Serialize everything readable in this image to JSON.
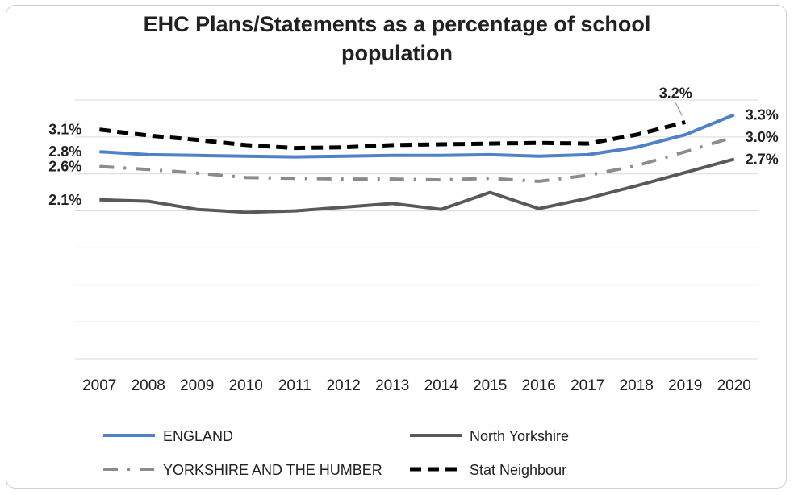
{
  "chart_data": {
    "type": "line",
    "title": "EHC Plans/Statements as a percentage of school population",
    "xlabel": "",
    "ylabel": "",
    "x": [
      "2007",
      "2008",
      "2009",
      "2010",
      "2011",
      "2012",
      "2013",
      "2014",
      "2015",
      "2016",
      "2017",
      "2018",
      "2019",
      "2020"
    ],
    "ylim": [
      0,
      3.5
    ],
    "grid": true,
    "legend_position": "bottom",
    "series": [
      {
        "name": "ENGLAND",
        "color": "#4f81c8",
        "style": "solid",
        "values": [
          2.8,
          2.76,
          2.75,
          2.74,
          2.73,
          2.74,
          2.75,
          2.75,
          2.76,
          2.74,
          2.76,
          2.86,
          3.03,
          3.3
        ]
      },
      {
        "name": "North Yorkshire",
        "color": "#595959",
        "style": "solid",
        "values": [
          2.15,
          2.13,
          2.02,
          1.98,
          2.0,
          2.05,
          2.1,
          2.02,
          2.25,
          2.03,
          2.17,
          2.34,
          2.52,
          2.7
        ]
      },
      {
        "name": "YORKSHIRE AND THE HUMBER",
        "color": "#8c8c8c",
        "style": "dashdot",
        "values": [
          2.6,
          2.56,
          2.51,
          2.45,
          2.44,
          2.43,
          2.43,
          2.42,
          2.44,
          2.4,
          2.48,
          2.61,
          2.8,
          3.0
        ]
      },
      {
        "name": "Stat Neighbour",
        "color": "#000000",
        "style": "dashed",
        "values": [
          3.1,
          3.02,
          2.96,
          2.89,
          2.85,
          2.86,
          2.89,
          2.9,
          2.91,
          2.92,
          2.91,
          3.03,
          3.2,
          null
        ]
      }
    ],
    "data_labels": [
      {
        "series": "Stat Neighbour",
        "x": "2007",
        "text": "3.1%"
      },
      {
        "series": "ENGLAND",
        "x": "2007",
        "text": "2.8%"
      },
      {
        "series": "YORKSHIRE AND THE HUMBER",
        "x": "2007",
        "text": "2.6%"
      },
      {
        "series": "North Yorkshire",
        "x": "2007",
        "text": "2.1%"
      },
      {
        "series": "Stat Neighbour",
        "x": "2019",
        "text": "3.2%"
      },
      {
        "series": "ENGLAND",
        "x": "2020",
        "text": "3.3%"
      },
      {
        "series": "YORKSHIRE AND THE HUMBER",
        "x": "2020",
        "text": "3.0%"
      },
      {
        "series": "North Yorkshire",
        "x": "2020",
        "text": "2.7%"
      }
    ]
  }
}
